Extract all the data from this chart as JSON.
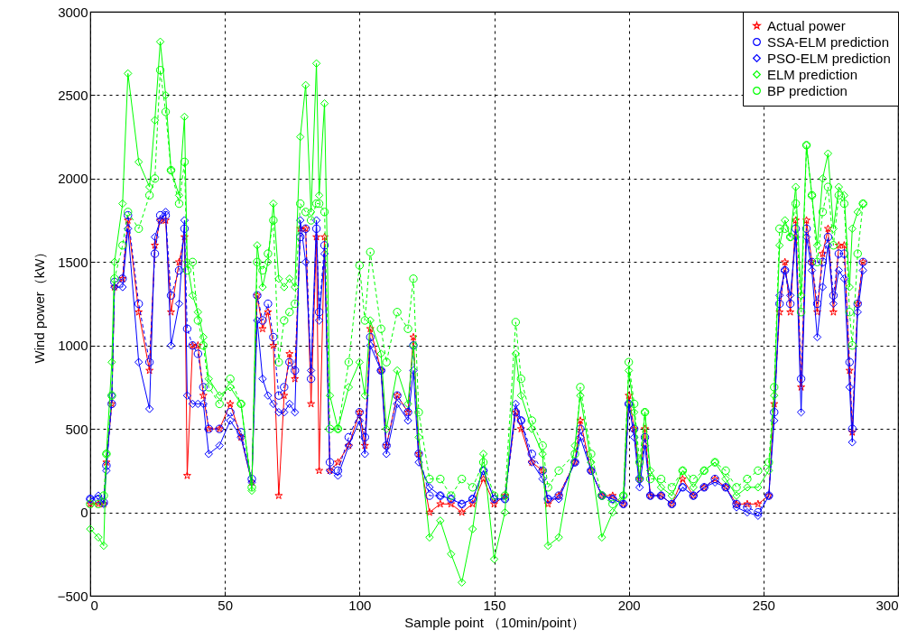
{
  "chart_data": {
    "type": "line",
    "xlabel": "Sample point （10min/point）",
    "ylabel": "Wind power（kW）",
    "x": [
      0,
      3,
      5,
      6,
      8,
      9,
      12,
      14,
      18,
      22,
      24,
      26,
      28,
      30,
      33,
      35,
      36,
      38,
      40,
      42,
      44,
      48,
      52,
      56,
      60,
      62,
      64,
      66,
      68,
      70,
      72,
      74,
      76,
      78,
      80,
      82,
      84,
      85,
      87,
      89,
      92,
      96,
      100,
      102,
      104,
      108,
      110,
      114,
      118,
      120,
      122,
      126,
      130,
      134,
      138,
      142,
      146,
      150,
      154,
      158,
      160,
      164,
      168,
      170,
      174,
      180,
      182,
      186,
      190,
      194,
      198,
      200,
      202,
      204,
      206,
      208,
      212,
      216,
      220,
      224,
      228,
      232,
      236,
      240,
      244,
      248,
      252,
      254,
      256,
      258,
      260,
      262,
      264,
      266,
      268,
      270,
      272,
      274,
      276,
      278,
      280,
      282,
      283,
      285,
      287
    ],
    "series": [
      {
        "name": "Actual power",
        "color": "#ff0000",
        "marker": "star",
        "line_style": "solid",
        "values": [
          50,
          50,
          50,
          300,
          650,
          1350,
          1400,
          1750,
          1200,
          850,
          1600,
          1750,
          1750,
          1200,
          1500,
          1650,
          220,
          1000,
          1000,
          700,
          500,
          500,
          650,
          450,
          180,
          1300,
          1100,
          1200,
          1000,
          100,
          700,
          950,
          800,
          1700,
          1700,
          650,
          1650,
          250,
          1650,
          250,
          300,
          400,
          600,
          400,
          1100,
          850,
          400,
          700,
          600,
          1050,
          350,
          0,
          50,
          50,
          0,
          50,
          200,
          50,
          100,
          600,
          500,
          300,
          250,
          50,
          100,
          300,
          550,
          250,
          100,
          100,
          50,
          700,
          500,
          200,
          500,
          100,
          100,
          50,
          200,
          100,
          150,
          200,
          150,
          50,
          50,
          50,
          100,
          650,
          1200,
          1500,
          1200,
          1750,
          750,
          1750,
          1500,
          1200,
          1550,
          1700,
          1200,
          1600,
          1600,
          850,
          480,
          1250,
          1500
        ]
      },
      {
        "name": "SSA-ELM prediction",
        "color": "#0000ff",
        "marker": "circle",
        "line_style": "dashed",
        "values": [
          80,
          80,
          60,
          280,
          650,
          1380,
          1400,
          1780,
          1250,
          900,
          1550,
          1780,
          1780,
          1300,
          1450,
          1700,
          1100,
          1000,
          950,
          750,
          500,
          500,
          600,
          480,
          200,
          1300,
          1150,
          1250,
          1050,
          700,
          750,
          900,
          850,
          1650,
          1700,
          800,
          1700,
          1200,
          1600,
          300,
          250,
          450,
          600,
          450,
          1050,
          850,
          400,
          700,
          600,
          1000,
          350,
          100,
          100,
          80,
          50,
          80,
          250,
          80,
          80,
          600,
          550,
          350,
          250,
          80,
          100,
          300,
          500,
          250,
          100,
          80,
          50,
          650,
          500,
          200,
          450,
          100,
          100,
          50,
          150,
          100,
          150,
          200,
          150,
          50,
          30,
          0,
          100,
          600,
          1250,
          1450,
          1250,
          1700,
          800,
          1700,
          1500,
          1250,
          1500,
          1650,
          1300,
          1550,
          1550,
          900,
          500,
          1250,
          1500
        ]
      },
      {
        "name": "PSO-ELM prediction",
        "color": "#0000ff",
        "marker": "diamond",
        "line_style": "solid",
        "values": [
          80,
          100,
          50,
          250,
          700,
          1350,
          1350,
          1700,
          900,
          620,
          1650,
          1750,
          1800,
          1000,
          1250,
          1750,
          700,
          650,
          650,
          650,
          350,
          400,
          550,
          450,
          180,
          1150,
          800,
          700,
          650,
          600,
          600,
          650,
          600,
          1750,
          1500,
          850,
          1750,
          1150,
          1550,
          250,
          220,
          400,
          550,
          350,
          1000,
          850,
          350,
          650,
          550,
          850,
          300,
          150,
          100,
          80,
          50,
          80,
          250,
          80,
          80,
          650,
          550,
          300,
          200,
          80,
          80,
          300,
          450,
          250,
          100,
          80,
          50,
          650,
          450,
          150,
          400,
          100,
          100,
          50,
          150,
          100,
          150,
          180,
          150,
          30,
          0,
          -20,
          100,
          550,
          1300,
          1450,
          1300,
          1650,
          600,
          1650,
          1450,
          1050,
          1350,
          1600,
          1250,
          1450,
          1400,
          750,
          420,
          1200,
          1450
        ]
      },
      {
        "name": "ELM prediction",
        "color": "#00ff00",
        "marker": "diamond",
        "line_style": "solid",
        "values": [
          -100,
          -150,
          -200,
          350,
          900,
          1500,
          1850,
          2630,
          2100,
          1950,
          2350,
          2820,
          2500,
          2050,
          1900,
          2370,
          1500,
          1300,
          1200,
          1050,
          800,
          700,
          750,
          650,
          130,
          1600,
          1350,
          1500,
          1850,
          1400,
          1350,
          1400,
          1350,
          2250,
          2560,
          1800,
          2690,
          1900,
          2450,
          700,
          500,
          750,
          900,
          700,
          1150,
          950,
          500,
          850,
          650,
          1000,
          450,
          -150,
          -50,
          -250,
          -420,
          -100,
          350,
          -280,
          0,
          950,
          700,
          500,
          350,
          -200,
          -150,
          400,
          700,
          300,
          -150,
          0,
          100,
          850,
          600,
          200,
          600,
          250,
          150,
          100,
          250,
          150,
          250,
          300,
          200,
          100,
          150,
          150,
          250,
          700,
          1600,
          1750,
          1650,
          1950,
          1300,
          2200,
          1900,
          1600,
          2000,
          2150,
          1700,
          1950,
          1900,
          1350,
          1700,
          1800,
          1850
        ]
      },
      {
        "name": "BP prediction",
        "color": "#00ff00",
        "marker": "circle",
        "line_style": "dashed",
        "values": [
          50,
          50,
          100,
          350,
          700,
          1400,
          1600,
          1800,
          1700,
          1900,
          2000,
          2650,
          2400,
          2050,
          1850,
          2100,
          1450,
          1500,
          1150,
          1000,
          750,
          650,
          800,
          650,
          150,
          1500,
          1450,
          1550,
          1750,
          900,
          1150,
          1200,
          1250,
          1850,
          1800,
          1750,
          1850,
          1850,
          1800,
          500,
          500,
          900,
          1480,
          1150,
          1560,
          1100,
          900,
          1200,
          1100,
          1400,
          600,
          200,
          200,
          100,
          200,
          150,
          300,
          100,
          100,
          1140,
          800,
          550,
          400,
          150,
          250,
          350,
          750,
          350,
          100,
          50,
          100,
          900,
          650,
          300,
          600,
          200,
          200,
          150,
          250,
          200,
          250,
          300,
          250,
          150,
          200,
          250,
          300,
          750,
          1700,
          1700,
          1650,
          1850,
          1200,
          2200,
          1900,
          1500,
          1800,
          1950,
          1600,
          1900,
          1850,
          1200,
          1000,
          1550,
          1850
        ]
      }
    ],
    "xlim": [
      0,
      300
    ],
    "ylim": [
      -500,
      3000
    ],
    "xticks": [
      0,
      50,
      100,
      150,
      200,
      250,
      300
    ],
    "yticks": [
      -500,
      0,
      500,
      1000,
      1500,
      2000,
      2500,
      3000
    ],
    "grid": true,
    "legend": "top right"
  }
}
